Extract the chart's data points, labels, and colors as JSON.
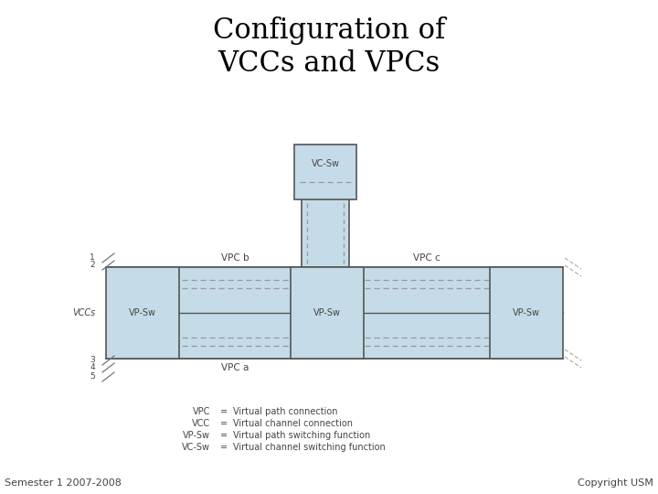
{
  "title": "Configuration of\nVCCs and VPCs",
  "title_fontsize": 22,
  "bg_color": "#ffffff",
  "light_blue": "#c5dce8",
  "border_color": "#555555",
  "dashed_color": "#999999",
  "text_color": "#444444",
  "legend_items": [
    [
      "VPC",
      "=",
      "Virtual path connection"
    ],
    [
      "VCC",
      "=",
      "Virtual channel connection"
    ],
    [
      "VP-Sw",
      "=",
      "Virtual path switching function"
    ],
    [
      "VC-Sw",
      "=",
      "Virtual channel switching function"
    ]
  ],
  "footer_left": "Semester 1 2007-2008",
  "footer_right": "Copyright USM",
  "vc_sw_label": "VC-Sw",
  "vp_sw_label": "VP-Sw",
  "vpc_b_label": "VPC b",
  "vpc_c_label": "VPC c",
  "vpc_a_label": "VPC a",
  "vccs_label": "VCCs",
  "line_numbers": [
    "1",
    "2",
    "3",
    "4",
    "5"
  ]
}
